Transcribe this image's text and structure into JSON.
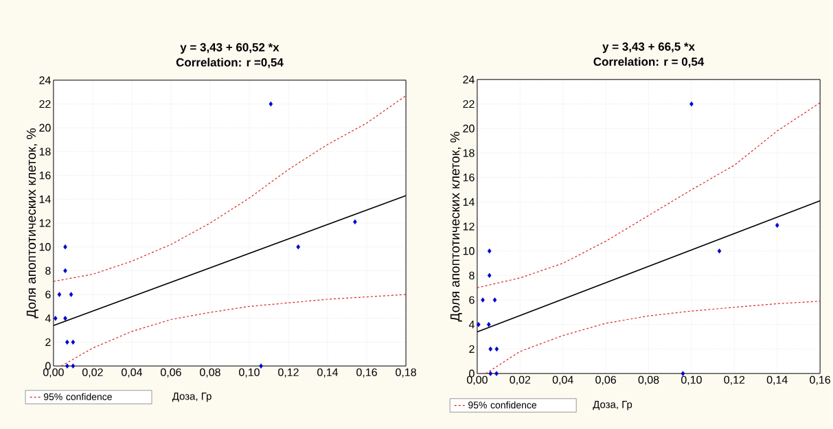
{
  "chart_data": [
    {
      "type": "scatter",
      "title": "y = 3,43 + 60,52 *x",
      "subtitle": "Correlation: r =0,54",
      "xlabel": "Доза, Гр",
      "ylabel": "Доля апоптотических клеток, %",
      "xlim": [
        0,
        0.18
      ],
      "ylim": [
        0,
        24
      ],
      "xticks": [
        {
          "value": 0,
          "label": "0,00"
        },
        {
          "value": 0.02,
          "label": "0,02"
        },
        {
          "value": 0.04,
          "label": "0,04"
        },
        {
          "value": 0.06,
          "label": "0,06"
        },
        {
          "value": 0.08,
          "label": "0,08"
        },
        {
          "value": 0.1,
          "label": "0,10"
        },
        {
          "value": 0.12,
          "label": "0,12"
        },
        {
          "value": 0.14,
          "label": "0,14"
        },
        {
          "value": 0.16,
          "label": "0,16"
        },
        {
          "value": 0.18,
          "label": "0,18"
        }
      ],
      "yticks": [
        0,
        2,
        4,
        6,
        8,
        10,
        12,
        14,
        16,
        18,
        20,
        22,
        24
      ],
      "grid": true,
      "legend": "bottom left",
      "series": [
        {
          "marker": "diamond",
          "color": "#0000cc",
          "x": [
            0.001,
            0.003,
            0.006,
            0.006,
            0.006,
            0.007,
            0.009,
            0.01,
            0.007,
            0.01,
            0.106,
            0.111,
            0.125,
            0.154
          ],
          "values": [
            4,
            6,
            4,
            8,
            10,
            2,
            6,
            2,
            0,
            0,
            0,
            22,
            10,
            12.1
          ]
        },
        {
          "type": "line",
          "line_style": "solid",
          "color": "#000000",
          "x": [
            0,
            0.18
          ],
          "values": [
            3.4,
            14.3
          ]
        },
        {
          "type": "line",
          "line_style": "dashed",
          "name": "95% confidence",
          "color": "#dd2222",
          "x": [
            0,
            0.02,
            0.04,
            0.06,
            0.08,
            0.1,
            0.12,
            0.14,
            0.16,
            0.18
          ],
          "values": [
            7.1,
            7.7,
            8.8,
            10.2,
            12,
            14.1,
            16.5,
            18.6,
            20.4,
            22.7
          ]
        },
        {
          "type": "line",
          "line_style": "dashed",
          "color": "#dd2222",
          "x": [
            0.004,
            0.02,
            0.04,
            0.06,
            0.08,
            0.1,
            0.12,
            0.14,
            0.16,
            0.18
          ],
          "values": [
            0,
            1.5,
            2.9,
            3.9,
            4.5,
            5.0,
            5.3,
            5.6,
            5.8,
            6.0
          ]
        }
      ]
    },
    {
      "type": "scatter",
      "title": "y = 3,43 + 66,5 *x",
      "subtitle": "Correlation: r = 0,54",
      "xlabel": "Доза, Гр",
      "ylabel": "Доля апоптотических клеток, %",
      "xlim": [
        0,
        0.16
      ],
      "ylim": [
        0,
        24
      ],
      "xticks": [
        {
          "value": 0,
          "label": "0,00"
        },
        {
          "value": 0.02,
          "label": "0,02"
        },
        {
          "value": 0.04,
          "label": "0,04"
        },
        {
          "value": 0.06,
          "label": "0,06"
        },
        {
          "value": 0.08,
          "label": "0,08"
        },
        {
          "value": 0.1,
          "label": "0,10"
        },
        {
          "value": 0.12,
          "label": "0,12"
        },
        {
          "value": 0.14,
          "label": "0,14"
        },
        {
          "value": 0.16,
          "label": "0,16"
        }
      ],
      "yticks": [
        0,
        2,
        4,
        6,
        8,
        10,
        12,
        14,
        16,
        18,
        20,
        22,
        24
      ],
      "grid": true,
      "legend": "bottom left",
      "series": [
        {
          "marker": "diamond",
          "color": "#0000cc",
          "x": [
            0.0006,
            0.0026,
            0.0054,
            0.0057,
            0.0057,
            0.0062,
            0.0082,
            0.0091,
            0.0062,
            0.009,
            0.096,
            0.1,
            0.113,
            0.14
          ],
          "values": [
            4,
            6,
            4,
            8,
            10,
            2,
            6,
            2,
            0,
            0,
            0,
            22,
            10,
            12.1
          ]
        },
        {
          "type": "line",
          "line_style": "solid",
          "color": "#000000",
          "x": [
            0,
            0.16
          ],
          "values": [
            3.4,
            14.1
          ]
        },
        {
          "type": "line",
          "line_style": "dashed",
          "name": "95% confidence",
          "color": "#dd2222",
          "x": [
            0,
            0.02,
            0.04,
            0.06,
            0.08,
            0.1,
            0.12,
            0.14,
            0.16
          ],
          "values": [
            7.0,
            7.8,
            9.0,
            10.8,
            12.9,
            15.0,
            17.0,
            19.8,
            22.1
          ]
        },
        {
          "type": "line",
          "line_style": "dashed",
          "color": "#dd2222",
          "x": [
            0.004,
            0.02,
            0.04,
            0.06,
            0.08,
            0.1,
            0.12,
            0.14,
            0.16
          ],
          "values": [
            0,
            1.8,
            3.1,
            4.1,
            4.7,
            5.1,
            5.4,
            5.7,
            5.9
          ]
        }
      ]
    }
  ]
}
